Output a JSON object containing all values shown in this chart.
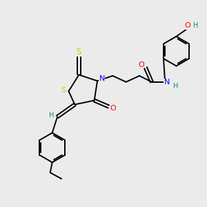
{
  "bg_color": "#ebebeb",
  "atom_colors": {
    "S": "#cccc00",
    "N": "#0000ee",
    "O": "#ff0000",
    "H": "#008b8b",
    "C": "#000000"
  }
}
